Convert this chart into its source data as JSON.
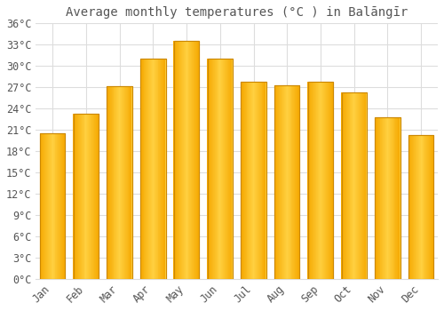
{
  "title": "Average monthly temperatures (°C ) in Balāngīr",
  "months": [
    "Jan",
    "Feb",
    "Mar",
    "Apr",
    "May",
    "Jun",
    "Jul",
    "Aug",
    "Sep",
    "Oct",
    "Nov",
    "Dec"
  ],
  "values": [
    20.5,
    23.3,
    27.2,
    31.0,
    33.5,
    31.0,
    27.8,
    27.3,
    27.8,
    26.3,
    22.8,
    20.3
  ],
  "bar_color_left": "#F5A800",
  "bar_color_mid": "#FFD040",
  "bar_color_right": "#F5A800",
  "bar_edge_color": "#CC8800",
  "background_color": "#FFFFFF",
  "grid_color": "#DDDDDD",
  "text_color": "#555555",
  "ylim": [
    0,
    36
  ],
  "ytick_step": 3,
  "title_fontsize": 10,
  "tick_fontsize": 8.5
}
